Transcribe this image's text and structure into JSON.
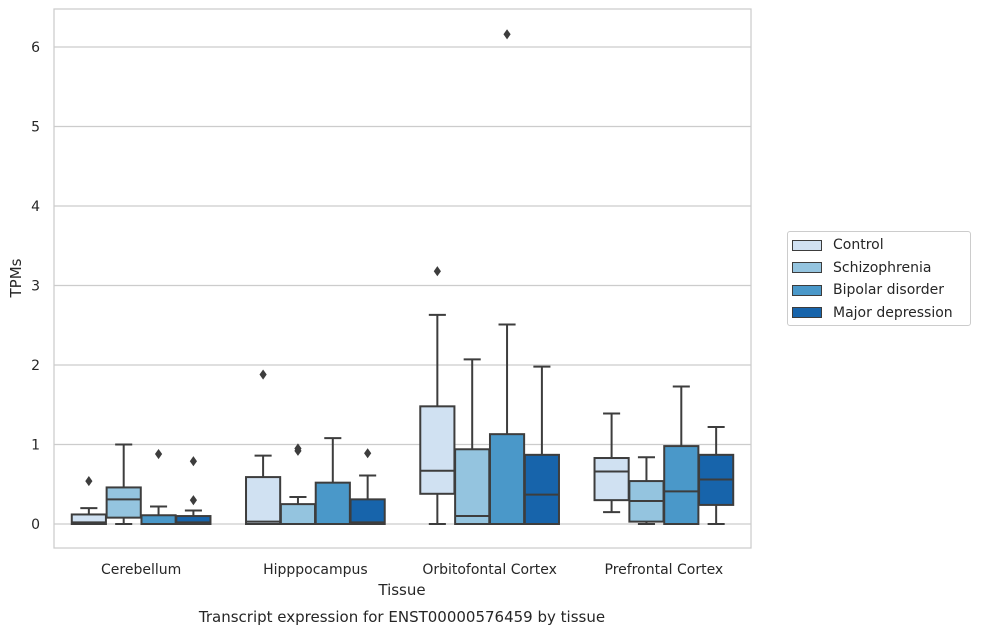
{
  "chart_data": {
    "type": "box",
    "caption": "Transcript expression for ENST00000576459 by tissue",
    "xlabel": "Tissue",
    "ylabel": "TPMs",
    "ylim": [
      -0.3,
      6.5
    ],
    "yticks": [
      0,
      1,
      2,
      3,
      4,
      5,
      6
    ],
    "grid": true,
    "legend_position": "right",
    "categories": [
      "Cerebellum",
      "Hipppocampus",
      "Orbitofontal Cortex",
      "Prefrontal Cortex"
    ],
    "series": [
      {
        "name": "Control",
        "color": "#d0e1f2",
        "boxes": [
          {
            "whislo": 0.0,
            "q1": 0.0,
            "med": 0.02,
            "q3": 0.12,
            "whishi": 0.2,
            "fliers": [
              0.54
            ]
          },
          {
            "whislo": 0.0,
            "q1": 0.0,
            "med": 0.03,
            "q3": 0.59,
            "whishi": 0.86,
            "fliers": [
              1.88
            ]
          },
          {
            "whislo": 0.0,
            "q1": 0.38,
            "med": 0.67,
            "q3": 1.48,
            "whishi": 2.63,
            "fliers": [
              3.18
            ]
          },
          {
            "whislo": 0.15,
            "q1": 0.3,
            "med": 0.66,
            "q3": 0.83,
            "whishi": 1.39,
            "fliers": []
          }
        ]
      },
      {
        "name": "Schizophrenia",
        "color": "#94c4df",
        "boxes": [
          {
            "whislo": 0.0,
            "q1": 0.08,
            "med": 0.31,
            "q3": 0.46,
            "whishi": 1.0,
            "fliers": []
          },
          {
            "whislo": 0.0,
            "q1": 0.0,
            "med": 0.0,
            "q3": 0.25,
            "whishi": 0.34,
            "fliers": [
              0.92,
              0.95
            ]
          },
          {
            "whislo": 0.0,
            "q1": 0.0,
            "med": 0.1,
            "q3": 0.94,
            "whishi": 2.07,
            "fliers": []
          },
          {
            "whislo": 0.0,
            "q1": 0.03,
            "med": 0.29,
            "q3": 0.54,
            "whishi": 0.84,
            "fliers": []
          }
        ]
      },
      {
        "name": "Bipolar disorder",
        "color": "#4a98c9",
        "boxes": [
          {
            "whislo": 0.0,
            "q1": 0.0,
            "med": 0.0,
            "q3": 0.11,
            "whishi": 0.22,
            "fliers": [
              0.88
            ]
          },
          {
            "whislo": 0.0,
            "q1": 0.0,
            "med": 0.0,
            "q3": 0.52,
            "whishi": 1.08,
            "fliers": []
          },
          {
            "whislo": 0.0,
            "q1": 0.0,
            "med": 0.0,
            "q3": 1.13,
            "whishi": 2.51,
            "fliers": [
              6.16
            ]
          },
          {
            "whislo": 0.0,
            "q1": 0.0,
            "med": 0.41,
            "q3": 0.98,
            "whishi": 1.73,
            "fliers": []
          }
        ]
      },
      {
        "name": "Major depression",
        "color": "#1764ab",
        "boxes": [
          {
            "whislo": 0.0,
            "q1": 0.0,
            "med": 0.02,
            "q3": 0.1,
            "whishi": 0.17,
            "fliers": [
              0.3,
              0.79
            ]
          },
          {
            "whislo": 0.0,
            "q1": 0.0,
            "med": 0.02,
            "q3": 0.31,
            "whishi": 0.61,
            "fliers": [
              0.89
            ]
          },
          {
            "whislo": 0.0,
            "q1": 0.0,
            "med": 0.37,
            "q3": 0.87,
            "whishi": 1.98,
            "fliers": []
          },
          {
            "whislo": 0.0,
            "q1": 0.24,
            "med": 0.56,
            "q3": 0.87,
            "whishi": 1.22,
            "fliers": []
          }
        ]
      }
    ]
  }
}
